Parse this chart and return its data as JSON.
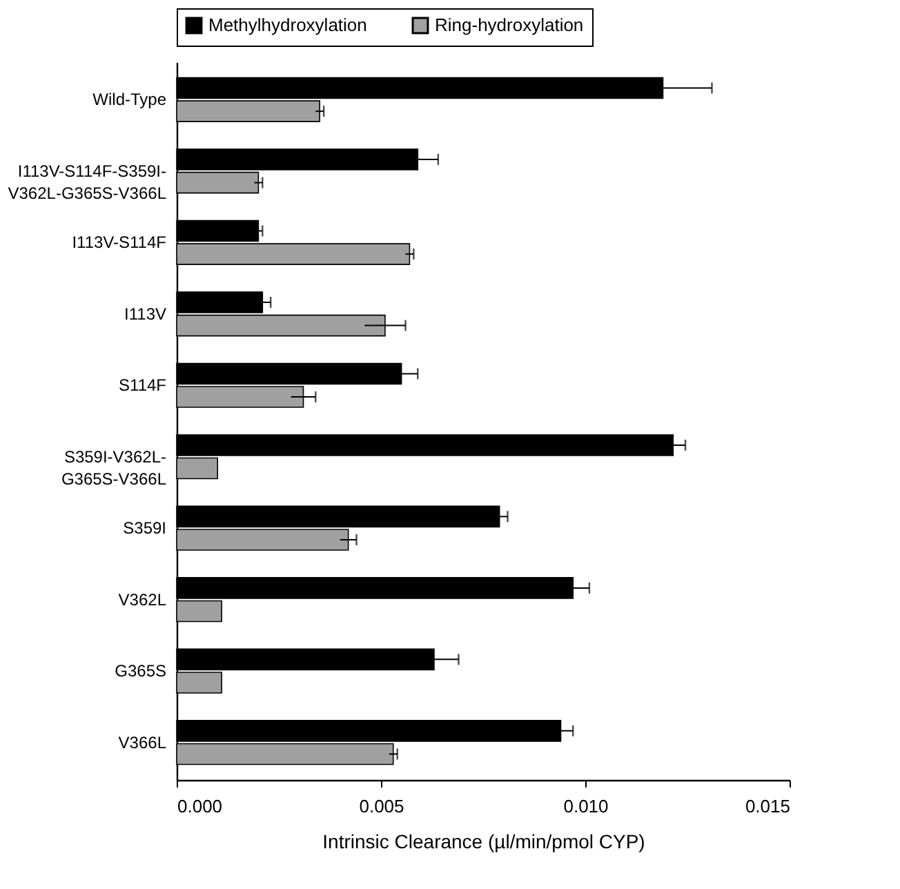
{
  "chart_data": {
    "type": "bar",
    "orientation": "horizontal",
    "xlabel": "Intrinsic Clearance (µl/min/pmol CYP)",
    "categories": [
      "Wild-Type",
      "I113V-S114F-S359I-\nV362L-G365S-V366L",
      "I113V-S114F",
      "I113V",
      "S114F",
      "S359I-V362L-\nG365S-V366L",
      "S359I",
      "V362L",
      "G365S",
      "V366L"
    ],
    "series": [
      {
        "name": "Methylhydroxylation",
        "color": "#000000",
        "values": [
          0.0119,
          0.0059,
          0.002,
          0.0021,
          0.0055,
          0.01215,
          0.0079,
          0.0097,
          0.0063,
          0.0094
        ],
        "errors": [
          0.0012,
          0.0005,
          0.0001,
          0.0002,
          0.0004,
          0.0003,
          0.0002,
          0.0004,
          0.0006,
          0.0003
        ]
      },
      {
        "name": "Ring-hydroxylation",
        "color": "#a0a0a0",
        "values": [
          0.0035,
          0.002,
          0.0057,
          0.0051,
          0.0031,
          0.001,
          0.0042,
          0.0011,
          0.0011,
          0.0053
        ],
        "errors": [
          0.0001,
          0.0001,
          0.0001,
          0.0005,
          0.0003,
          null,
          0.0002,
          null,
          null,
          0.0001
        ]
      }
    ],
    "xlim": [
      0,
      0.015
    ],
    "xticks": [
      {
        "value": 0,
        "label": "0.000"
      },
      {
        "value": 0.005,
        "label": "0.005"
      },
      {
        "value": 0.01,
        "label": "0.010"
      },
      {
        "value": 0.015,
        "label": "0.015"
      }
    ],
    "legend": "top",
    "grid": false
  }
}
